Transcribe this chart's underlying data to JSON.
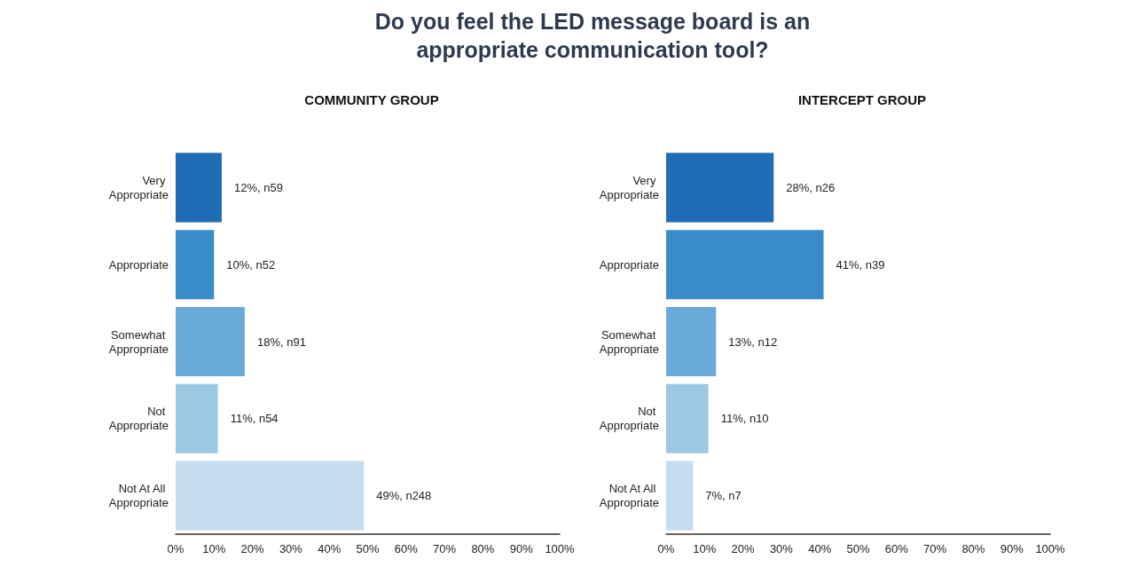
{
  "chart_data": [
    {
      "type": "bar",
      "orientation": "horizontal",
      "title": "Do you feel the LED message board is an appropriate communication tool?",
      "subtitle": "COMMUNITY GROUP",
      "categories": [
        "Very Appropriate",
        "Appropriate",
        "Somewhat Appropriate",
        "Not Appropriate",
        "Not At All Appropriate"
      ],
      "values": [
        12,
        10,
        18,
        11,
        49
      ],
      "value_labels": [
        "12%, n59",
        "10%, n52",
        "18%, n91",
        "11%, n54",
        "49%, n248"
      ],
      "colors": [
        "#1f6db5",
        "#3a8cc8",
        "#6aaad8",
        "#9cc8e4",
        "#c6dcef"
      ],
      "xlim": [
        0,
        100
      ],
      "xticks": [
        {
          "value": 0,
          "label": "0%"
        },
        {
          "value": 10,
          "label": "10%"
        },
        {
          "value": 20,
          "label": "20%"
        },
        {
          "value": 30,
          "label": "30%"
        },
        {
          "value": 40,
          "label": "40%"
        },
        {
          "value": 50,
          "label": "50%"
        },
        {
          "value": 60,
          "label": "60%"
        },
        {
          "value": 70,
          "label": "70%"
        },
        {
          "value": 80,
          "label": "80%"
        },
        {
          "value": 90,
          "label": "90%"
        },
        {
          "value": 100,
          "label": "100%"
        }
      ]
    },
    {
      "type": "bar",
      "orientation": "horizontal",
      "subtitle": "INTERCEPT GROUP",
      "categories": [
        "Very Appropriate",
        "Appropriate",
        "Somewhat Appropriate",
        "Not Appropriate",
        "Not At All Appropriate"
      ],
      "values": [
        28,
        41,
        13,
        11,
        7
      ],
      "value_labels": [
        "28%, n26",
        "41%, n39",
        "13%, n12",
        "11%, n10",
        "7%, n7"
      ],
      "colors": [
        "#1f6db5",
        "#3a8cc8",
        "#6aaad8",
        "#9cc8e4",
        "#c6dcef"
      ],
      "xlim": [
        0,
        100
      ],
      "xticks": [
        {
          "value": 0,
          "label": "0%"
        },
        {
          "value": 10,
          "label": "10%"
        },
        {
          "value": 20,
          "label": "20%"
        },
        {
          "value": 30,
          "label": "30%"
        },
        {
          "value": 40,
          "label": "40%"
        },
        {
          "value": 50,
          "label": "50%"
        },
        {
          "value": 60,
          "label": "60%"
        },
        {
          "value": 70,
          "label": "70%"
        },
        {
          "value": 80,
          "label": "80%"
        },
        {
          "value": 90,
          "label": "90%"
        },
        {
          "value": 100,
          "label": "100%"
        }
      ]
    }
  ]
}
